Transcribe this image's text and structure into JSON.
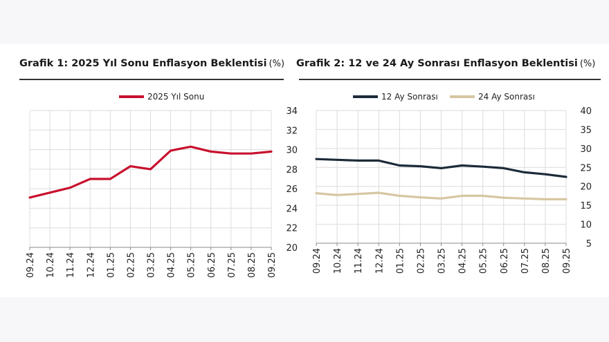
{
  "chart_data": [
    {
      "type": "line",
      "title": "Grafik 1: 2025 Yıl Sonu Enflasyon Beklentisi",
      "unit": "(%)",
      "categories": [
        "09.24",
        "10.24",
        "11.24",
        "12.24",
        "01.25",
        "02.25",
        "03.25",
        "04.25",
        "05.25",
        "06.25",
        "07.25",
        "08.25",
        "09.25"
      ],
      "series": [
        {
          "name": "2025 Yıl Sonu",
          "color": "#c8102e",
          "values": [
            25.1,
            25.6,
            26.1,
            27.0,
            27.0,
            28.3,
            28.0,
            29.9,
            30.3,
            29.8,
            29.6,
            29.6,
            29.8
          ]
        }
      ],
      "ylim": [
        20,
        34
      ],
      "yticks": [
        20,
        22,
        24,
        26,
        28,
        30,
        32,
        34
      ],
      "y_axis_side": "right",
      "legend_position": "top-center",
      "grid": true
    },
    {
      "type": "line",
      "title": "Grafik 2: 12 ve 24 Ay Sonrası Enflasyon Beklentisi",
      "unit": "(%)",
      "categories": [
        "09.24",
        "10.24",
        "11.24",
        "12.24",
        "01.25",
        "02.25",
        "03.25",
        "04.25",
        "05.25",
        "06.25",
        "07.25",
        "08.25",
        "09.25"
      ],
      "series": [
        {
          "name": "12 Ay Sonrası",
          "color": "#1c2b39",
          "values": [
            27.2,
            27.0,
            26.8,
            26.8,
            25.5,
            25.3,
            24.8,
            25.5,
            25.2,
            24.8,
            23.7,
            23.2,
            22.5
          ]
        },
        {
          "name": "24 Ay Sonrası",
          "color": "#d6c6a2",
          "values": [
            18.2,
            17.7,
            18.0,
            18.3,
            17.5,
            17.1,
            16.8,
            17.5,
            17.5,
            17.0,
            16.8,
            16.6,
            16.6
          ]
        }
      ],
      "ylim": [
        5,
        40
      ],
      "yticks": [
        5,
        10,
        15,
        20,
        25,
        30,
        35,
        40
      ],
      "y_axis_side": "right",
      "legend_position": "top-left",
      "grid": true
    }
  ]
}
